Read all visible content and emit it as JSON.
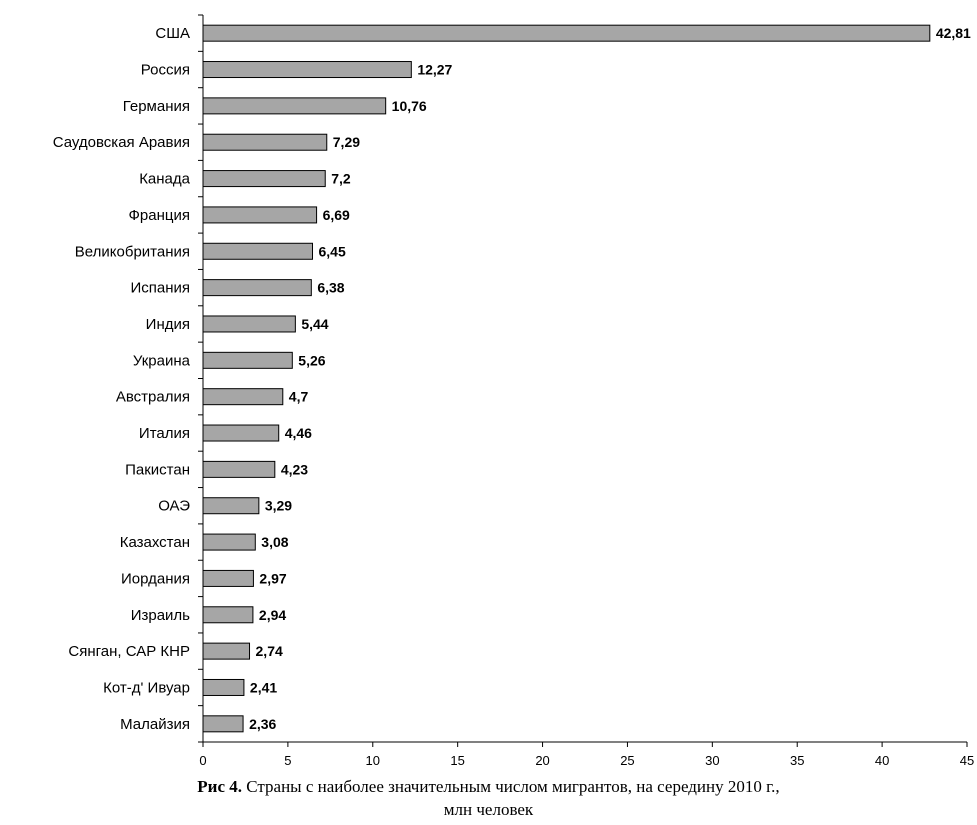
{
  "chart_data": {
    "type": "bar",
    "orientation": "horizontal",
    "categories": [
      "США",
      "Россия",
      "Германия",
      "Саудовская Аравия",
      "Канада",
      "Франция",
      "Великобритания",
      "Испания",
      "Индия",
      "Украина",
      "Австралия",
      "Италия",
      "Пакистан",
      "ОАЭ",
      "Казахстан",
      "Иордания",
      "Израиль",
      "Сянган, САР КНР",
      "Кот-д' Ивуар",
      "Малайзия"
    ],
    "values": [
      42.81,
      12.27,
      10.76,
      7.29,
      7.2,
      6.69,
      6.45,
      6.38,
      5.44,
      5.26,
      4.7,
      4.46,
      4.23,
      3.29,
      3.08,
      2.97,
      2.94,
      2.74,
      2.41,
      2.36
    ],
    "value_labels": [
      "42,81",
      "12,27",
      "10,76",
      "7,29",
      "7,2",
      "6,69",
      "6,45",
      "6,38",
      "5,44",
      "5,26",
      "4,7",
      "4,46",
      "4,23",
      "3,29",
      "3,08",
      "2,97",
      "2,94",
      "2,74",
      "2,41",
      "2,36"
    ],
    "xlim": [
      0,
      45
    ],
    "x_ticks": [
      0,
      5,
      10,
      15,
      20,
      25,
      30,
      35,
      40,
      45
    ],
    "x_tick_labels": [
      "0",
      "5",
      "10",
      "15",
      "20",
      "25",
      "30",
      "35",
      "40",
      "45"
    ],
    "grid": false,
    "bar_color": "#a6a6a6",
    "bar_edge_color": "#000000"
  },
  "caption": {
    "prefix": "Рис 4.",
    "line1": " Страны с наиболее значительным числом мигрантов, на середину 2010 г.,",
    "line2": "млн человек"
  }
}
